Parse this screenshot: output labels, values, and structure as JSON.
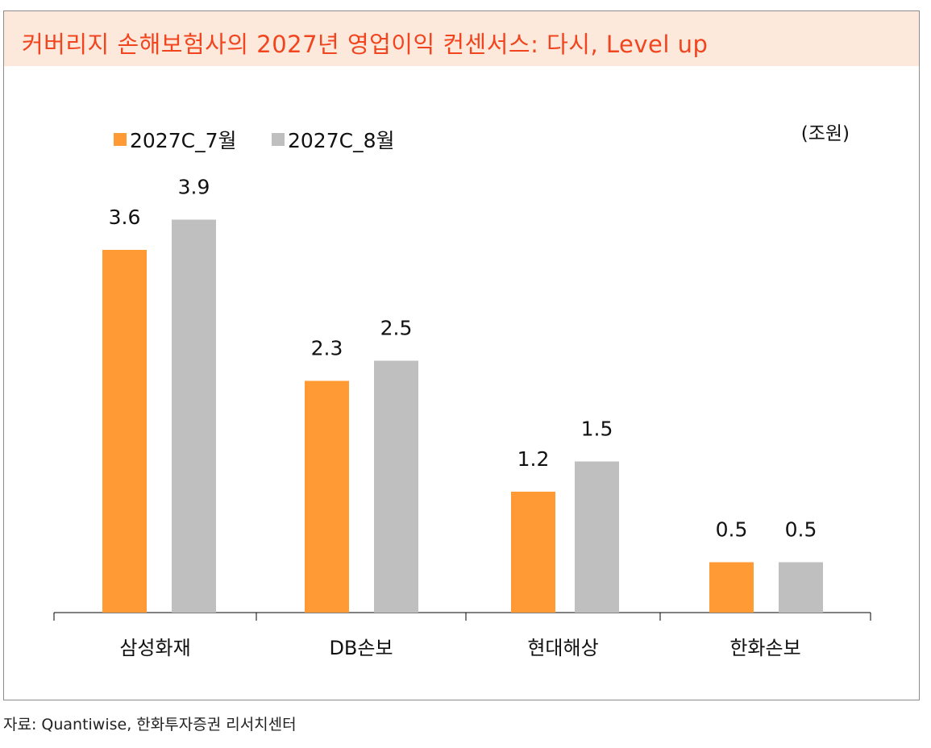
{
  "title": "커버리지 손해보험사의 2027년 영업이익 컨센서스: 다시, Level up",
  "source": "자료: Quantiwise, 한화투자증권 리서치센터",
  "colors": {
    "title_bg": "#fde9dc",
    "title_text": "#f0451f",
    "series_1": "#ff9a35",
    "series_2": "#bfbfbf"
  },
  "chart_data": {
    "type": "bar",
    "unit_label": "(조원)",
    "categories": [
      "삼성화재",
      "DB손보",
      "현대해상",
      "한화손보"
    ],
    "series": [
      {
        "name": "2027C_7월",
        "values": [
          3.6,
          2.3,
          1.2,
          0.5
        ],
        "labels": [
          "3.6",
          "2.3",
          "1.2",
          "0.5"
        ]
      },
      {
        "name": "2027C_8월",
        "values": [
          3.9,
          2.5,
          1.5,
          0.5
        ],
        "labels": [
          "3.9",
          "2.5",
          "1.5",
          "0.5"
        ]
      }
    ],
    "legend_position": "top-left",
    "grid": false
  }
}
